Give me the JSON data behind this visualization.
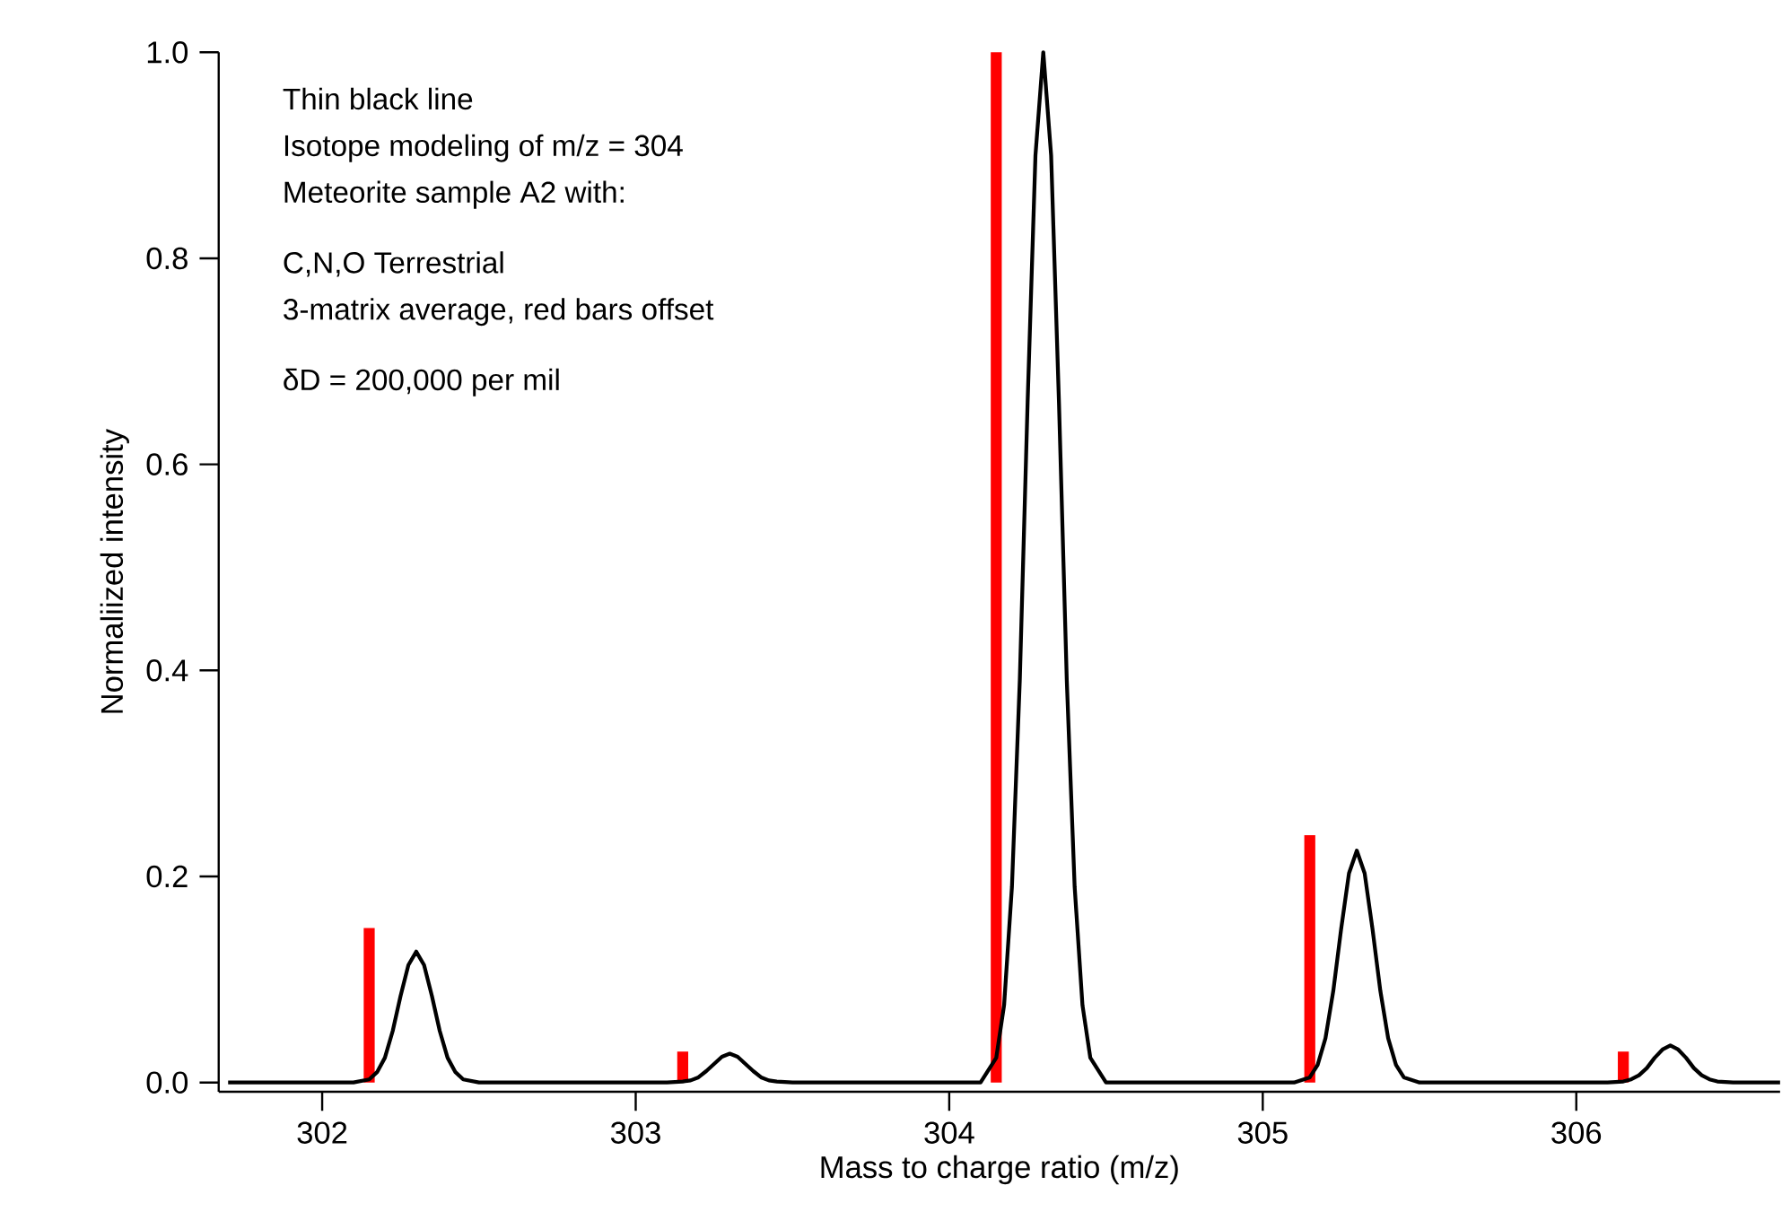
{
  "chart_data": {
    "type": "line",
    "xlabel": "Mass to charge ratio (m/z)",
    "ylabel": "Normaliized intensity",
    "annotations": [
      "Thin black line",
      "Isotope modeling of m/z = 304",
      "Meteorite sample A2 with:",
      "C,N,O Terrestrial",
      "3-matrix average, red bars offset",
      "δD = 200,000 per mil"
    ],
    "xlim": [
      301.67,
      306.65
    ],
    "ylim": [
      -0.009,
      1.0
    ],
    "xticks": [
      302,
      303,
      304,
      305,
      306
    ],
    "yticks": [
      {
        "value": 0,
        "label": "0.0"
      },
      0.2,
      0.4,
      0.6,
      0.8,
      {
        "value": 1,
        "label": "1.0"
      }
    ],
    "series": [
      {
        "type": "bar",
        "color": "#ff0000",
        "x": [
          302.15,
          303.15,
          304.15,
          305.15,
          306.15
        ],
        "values": [
          0.15,
          0.03,
          1.0,
          0.24,
          0.03
        ]
      },
      {
        "color": "#000000",
        "line_style": "solid",
        "marker": "none",
        "x": [
          301.7,
          302.1,
          302.15,
          302.175,
          302.2,
          302.225,
          302.25,
          302.275,
          302.3,
          302.325,
          302.35,
          302.375,
          302.4,
          302.425,
          302.45,
          302.5,
          303.1,
          303.15,
          303.175,
          303.2,
          303.225,
          303.25,
          303.275,
          303.3,
          303.325,
          303.35,
          303.375,
          303.4,
          303.425,
          303.45,
          303.5,
          304.1,
          304.15,
          304.175,
          304.2,
          304.225,
          304.25,
          304.275,
          304.3,
          304.325,
          304.35,
          304.375,
          304.4,
          304.425,
          304.45,
          304.5,
          305.1,
          305.15,
          305.175,
          305.2,
          305.225,
          305.25,
          305.275,
          305.3,
          305.325,
          305.35,
          305.375,
          305.4,
          305.425,
          305.45,
          305.5,
          306.1,
          306.15,
          306.175,
          306.2,
          306.225,
          306.25,
          306.275,
          306.3,
          306.325,
          306.35,
          306.375,
          306.4,
          306.425,
          306.45,
          306.5,
          306.65
        ],
        "values": [
          0,
          0,
          0.003,
          0.01,
          0.024,
          0.05,
          0.084,
          0.114,
          0.127,
          0.114,
          0.084,
          0.05,
          0.024,
          0.01,
          0.003,
          0,
          0,
          0.001,
          0.002,
          0.005,
          0.011,
          0.018,
          0.025,
          0.028,
          0.025,
          0.018,
          0.011,
          0.005,
          0.002,
          0.001,
          0,
          0,
          0.024,
          0.075,
          0.19,
          0.39,
          0.66,
          0.9,
          1.0,
          0.9,
          0.66,
          0.39,
          0.19,
          0.075,
          0.024,
          0,
          0,
          0.005,
          0.017,
          0.043,
          0.089,
          0.149,
          0.203,
          0.225,
          0.203,
          0.149,
          0.089,
          0.043,
          0.017,
          0.005,
          0,
          0,
          0.001,
          0.003,
          0.007,
          0.014,
          0.024,
          0.032,
          0.036,
          0.032,
          0.024,
          0.014,
          0.007,
          0.003,
          0.001,
          0,
          0
        ]
      }
    ]
  }
}
